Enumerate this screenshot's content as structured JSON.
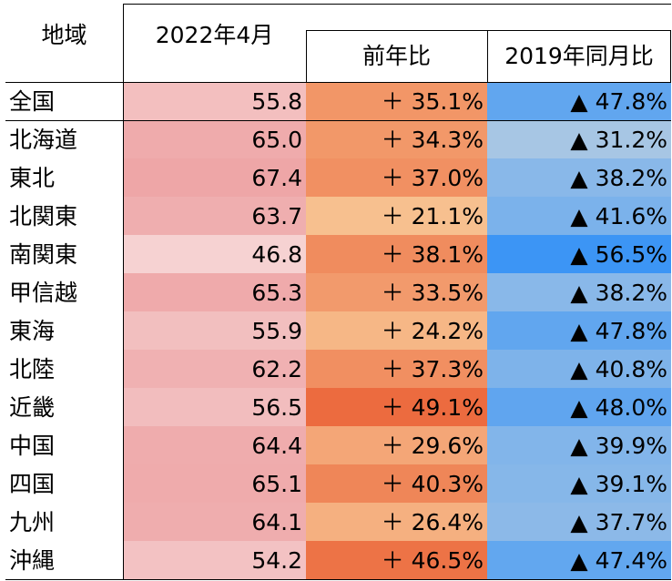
{
  "chart_data": {
    "type": "table",
    "columns": {
      "region": "地域",
      "value": "2022年4月",
      "yoy": "前年比",
      "vs2019": "2019年同月比"
    },
    "rows": [
      {
        "region": "全国",
        "value": "55.8",
        "yoy": "＋ 35.1%",
        "vs2019": "▲ 47.8%",
        "v": 55.8,
        "y": 35.1,
        "z": -47.8
      },
      {
        "region": "北海道",
        "value": "65.0",
        "yoy": "＋ 34.3%",
        "vs2019": "▲ 31.2%",
        "v": 65.0,
        "y": 34.3,
        "z": -31.2
      },
      {
        "region": "東北",
        "value": "67.4",
        "yoy": "＋ 37.0%",
        "vs2019": "▲ 38.2%",
        "v": 67.4,
        "y": 37.0,
        "z": -38.2
      },
      {
        "region": "北関東",
        "value": "63.7",
        "yoy": "＋ 21.1%",
        "vs2019": "▲ 41.6%",
        "v": 63.7,
        "y": 21.1,
        "z": -41.6
      },
      {
        "region": "南関東",
        "value": "46.8",
        "yoy": "＋ 38.1%",
        "vs2019": "▲ 56.5%",
        "v": 46.8,
        "y": 38.1,
        "z": -56.5
      },
      {
        "region": "甲信越",
        "value": "65.3",
        "yoy": "＋ 33.5%",
        "vs2019": "▲ 38.2%",
        "v": 65.3,
        "y": 33.5,
        "z": -38.2
      },
      {
        "region": "東海",
        "value": "55.9",
        "yoy": "＋ 24.2%",
        "vs2019": "▲ 47.8%",
        "v": 55.9,
        "y": 24.2,
        "z": -47.8
      },
      {
        "region": "北陸",
        "value": "62.2",
        "yoy": "＋ 37.3%",
        "vs2019": "▲ 40.8%",
        "v": 62.2,
        "y": 37.3,
        "z": -40.8
      },
      {
        "region": "近畿",
        "value": "56.5",
        "yoy": "＋ 49.1%",
        "vs2019": "▲ 48.0%",
        "v": 56.5,
        "y": 49.1,
        "z": -48.0
      },
      {
        "region": "中国",
        "value": "64.4",
        "yoy": "＋ 29.6%",
        "vs2019": "▲ 39.9%",
        "v": 64.4,
        "y": 29.6,
        "z": -39.9
      },
      {
        "region": "四国",
        "value": "65.1",
        "yoy": "＋ 40.3%",
        "vs2019": "▲ 39.1%",
        "v": 65.1,
        "y": 40.3,
        "z": -39.1
      },
      {
        "region": "九州",
        "value": "64.1",
        "yoy": "＋ 26.4%",
        "vs2019": "▲ 37.7%",
        "v": 64.1,
        "y": 26.4,
        "z": -37.7
      },
      {
        "region": "沖縄",
        "value": "54.2",
        "yoy": "＋ 46.5%",
        "vs2019": "▲ 47.4%",
        "v": 54.2,
        "y": 46.5,
        "z": -47.4
      }
    ],
    "colors": {
      "value_low": "#f6d2d2",
      "value_high": "#eea6a7",
      "yoy_low": "#f7c08f",
      "yoy_high": "#ec6b3f",
      "vs2019_low": "#a7c6e4",
      "vs2019_high": "#3c95f5",
      "rule": "#000000"
    }
  }
}
